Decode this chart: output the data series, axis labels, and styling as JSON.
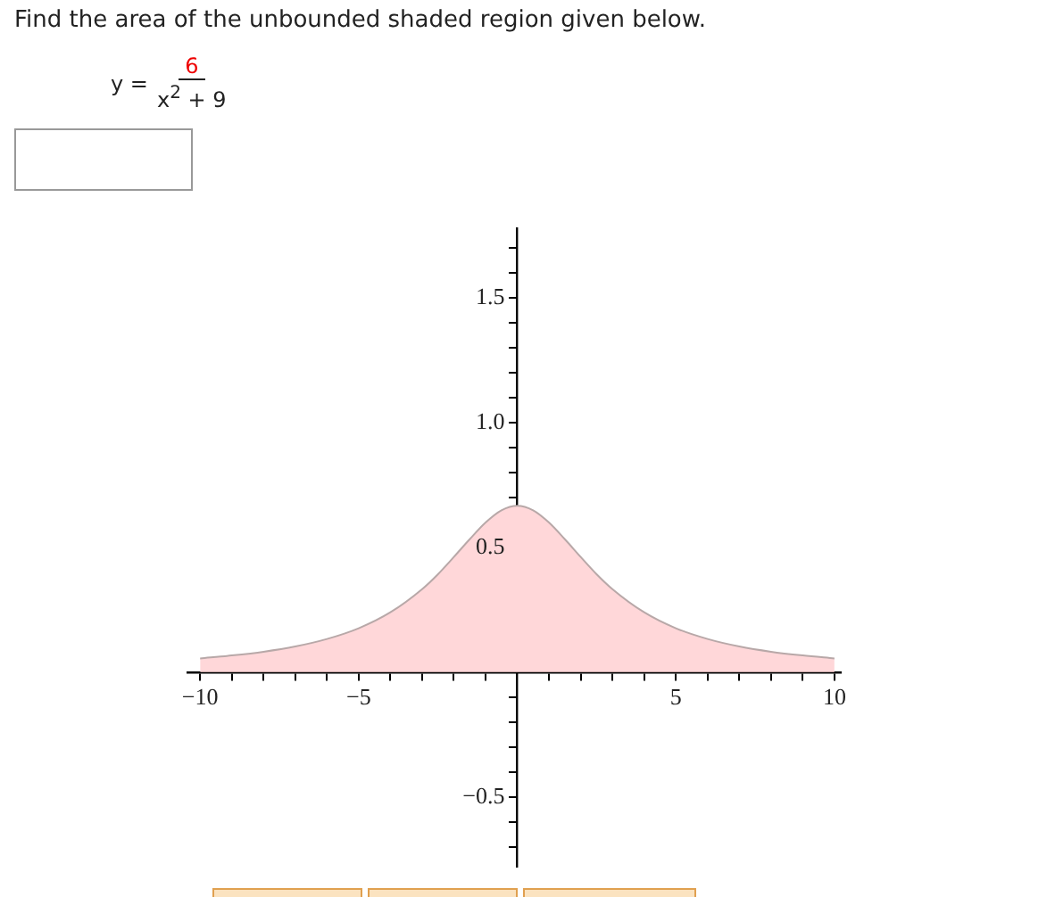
{
  "chart_data": {
    "type": "area",
    "title": "Find the area of the unbounded shaded region given below.",
    "annotations": [
      "y =",
      "6",
      "x$^{2}$ + 9"
    ],
    "x": [
      -10,
      -9,
      -8,
      -7,
      -6,
      -5,
      -4,
      -3,
      -2.5,
      -2,
      -1.5,
      -1,
      -0.5,
      0,
      0.5,
      1,
      1.5,
      2,
      2.5,
      3,
      4,
      5,
      6,
      7,
      8,
      9,
      10
    ],
    "series": [
      {
        "color": "#ffd7d9",
        "values": [
          0.055,
          0.067,
          0.082,
          0.103,
          0.133,
          0.176,
          0.24,
          0.333,
          0.393,
          0.462,
          0.533,
          0.6,
          0.649,
          0.667,
          0.649,
          0.6,
          0.533,
          0.462,
          0.393,
          0.333,
          0.24,
          0.176,
          0.133,
          0.103,
          0.082,
          0.067,
          0.055
        ]
      }
    ],
    "xlim": [
      -10.4,
      10.2
    ],
    "ylim": [
      -0.78,
      1.78
    ],
    "xticks": [
      {
        "value": -10,
        "label": "−10"
      },
      {
        "value": -9,
        "label": null
      },
      {
        "value": -8,
        "label": null
      },
      {
        "value": -7,
        "label": null
      },
      {
        "value": -6,
        "label": null
      },
      {
        "value": -5,
        "label": "−5"
      },
      {
        "value": -4,
        "label": null
      },
      {
        "value": -3,
        "label": null
      },
      {
        "value": -2,
        "label": null
      },
      {
        "value": -1,
        "label": null
      },
      {
        "value": 1,
        "label": null
      },
      {
        "value": 2,
        "label": null
      },
      {
        "value": 3,
        "label": null
      },
      {
        "value": 4,
        "label": null
      },
      5,
      {
        "value": 6,
        "label": null
      },
      {
        "value": 7,
        "label": null
      },
      {
        "value": 8,
        "label": null
      },
      {
        "value": 9,
        "label": null
      },
      10
    ],
    "yticks": [
      {
        "value": -0.7,
        "label": null
      },
      {
        "value": -0.6,
        "label": null
      },
      {
        "value": -0.5,
        "label": "−0.5"
      },
      {
        "value": -0.4,
        "label": null
      },
      {
        "value": -0.3,
        "label": null
      },
      {
        "value": -0.2,
        "label": null
      },
      {
        "value": -0.1,
        "label": null
      },
      {
        "value": 0.1,
        "label": null
      },
      {
        "value": 0.2,
        "label": null
      },
      {
        "value": 0.3,
        "label": null
      },
      {
        "value": 0.4,
        "label": null
      },
      0.5,
      {
        "value": 0.6,
        "label": null
      },
      {
        "value": 0.7,
        "label": null
      },
      {
        "value": 0.8,
        "label": null
      },
      {
        "value": 0.9,
        "label": null
      },
      {
        "value": 1,
        "label": "1.0"
      },
      {
        "value": 1.1,
        "label": null
      },
      {
        "value": 1.2,
        "label": null
      },
      {
        "value": 1.3,
        "label": null
      },
      {
        "value": 1.4,
        "label": null
      },
      1.5,
      {
        "value": 1.6,
        "label": null
      },
      {
        "value": 1.7,
        "label": null
      }
    ],
    "grid": false,
    "legend": false,
    "marker": "none"
  }
}
